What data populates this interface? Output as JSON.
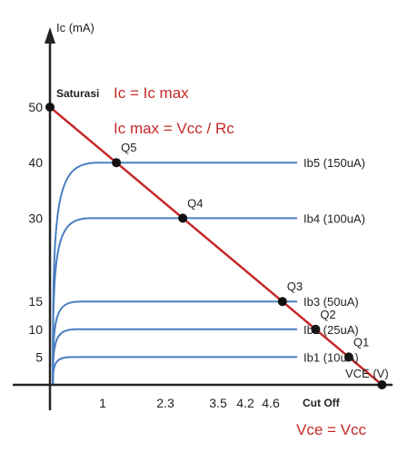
{
  "chart_data": {
    "type": "line",
    "title": "",
    "ylabel": "Ic (mA)",
    "xlabel": "VCE (V)",
    "xlim": [
      0,
      6.9
    ],
    "ylim": [
      0,
      55
    ],
    "x_ticks": [
      {
        "value": 1,
        "label": "1"
      },
      {
        "value": 2.3,
        "label": "2.3"
      },
      {
        "value": 3.5,
        "label": "3.5"
      },
      {
        "value": 4.2,
        "label": "4.2"
      },
      {
        "value": 4.6,
        "label": "4.6"
      }
    ],
    "y_ticks": [
      {
        "value": 5,
        "label": "5"
      },
      {
        "value": 10,
        "label": "10"
      },
      {
        "value": 15,
        "label": "15"
      },
      {
        "value": 30,
        "label": "30"
      },
      {
        "value": 40,
        "label": "40"
      },
      {
        "value": 50,
        "label": "50"
      }
    ],
    "series": [
      {
        "name": "Ib5 (150uA)",
        "ic_sat": 40
      },
      {
        "name": "Ib4 (100uA)",
        "ic_sat": 30
      },
      {
        "name": "Ib3 (50uA)",
        "ic_sat": 15
      },
      {
        "name": "Ib2 (25uA)",
        "ic_sat": 10
      },
      {
        "name": "Ib1 (10uA)",
        "ic_sat": 5
      }
    ],
    "load_line": {
      "from": [
        0,
        50
      ],
      "to": [
        5.8,
        0
      ]
    },
    "q_points": [
      {
        "label": "Q5",
        "x": 1,
        "y": 40
      },
      {
        "label": "Q4",
        "x": 2.3,
        "y": 30
      },
      {
        "label": "Q3",
        "x": 3.5,
        "y": 15
      },
      {
        "label": "Q2",
        "x": 4.2,
        "y": 10
      },
      {
        "label": "Q1",
        "x": 4.6,
        "y": 5
      }
    ],
    "annotations": {
      "saturation": "Saturasi",
      "ic_eq": "Ic = Ic max",
      "icmax_eq": "Ic max = Vcc / Rc",
      "cutoff": "Cut Off",
      "vce_eq": "Vce = Vcc"
    }
  },
  "colors": {
    "curve": "#4a7fc1",
    "load_line": "#c62828",
    "annotation": "#c62828",
    "axis": "#222222",
    "point": "#111111"
  }
}
